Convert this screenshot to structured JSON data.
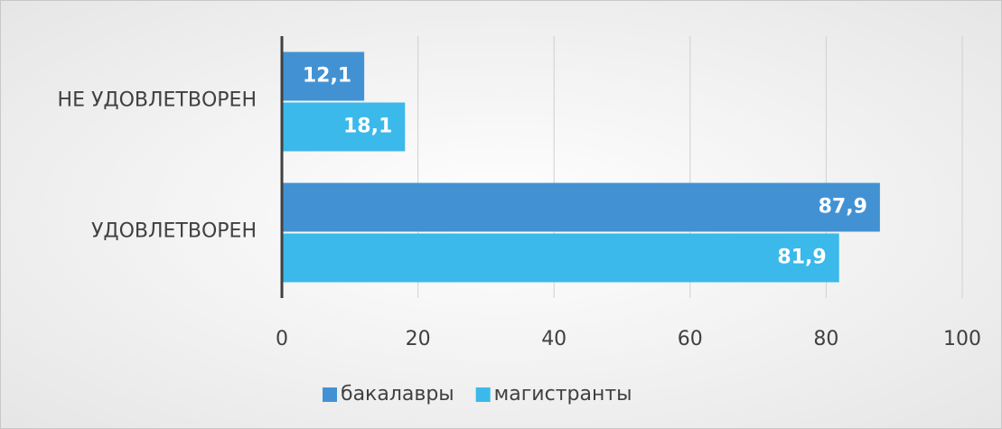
{
  "chart_data": {
    "type": "bar",
    "orientation": "horizontal",
    "categories": [
      "НЕ УДОВЛЕТВОРЕН",
      "УДОВЛЕТВОРЕН"
    ],
    "series": [
      {
        "name": "бакалавры",
        "color": "#4292d3",
        "values": [
          12.1,
          87.9
        ],
        "value_labels": [
          "12,1",
          "87,9"
        ]
      },
      {
        "name": "магистранты",
        "color": "#3bb9ea",
        "values": [
          18.1,
          81.9
        ],
        "value_labels": [
          "18,1",
          "81,9"
        ]
      }
    ],
    "xlim": [
      0,
      100
    ],
    "xticks": [
      0,
      20,
      40,
      60,
      80,
      100
    ],
    "grid": true,
    "legend": "bottom"
  }
}
